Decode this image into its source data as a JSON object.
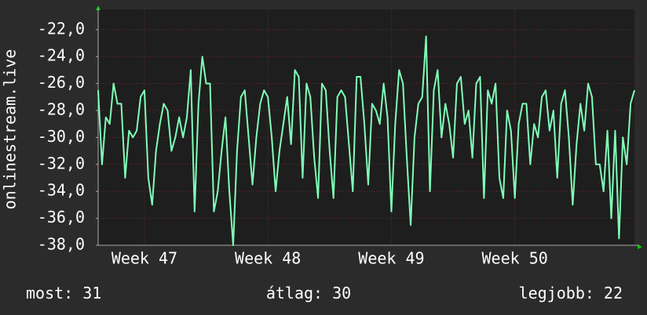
{
  "chart_data": {
    "type": "line",
    "y_label": "onlinestream.live",
    "xlim": [
      0,
      139
    ],
    "xticks": [
      {
        "value": 12,
        "label": "Week 47"
      },
      {
        "value": 44,
        "label": "Week 48"
      },
      {
        "value": 76,
        "label": "Week 49"
      },
      {
        "value": 108,
        "label": "Week 50"
      }
    ],
    "ylim": [
      -38,
      -20.5
    ],
    "yticks": [
      {
        "value": -38,
        "label": "-38,0"
      },
      {
        "value": -36,
        "label": "-36,0"
      },
      {
        "value": -34,
        "label": "-34,0"
      },
      {
        "value": -32,
        "label": "-32,0"
      },
      {
        "value": -30,
        "label": "-30,0"
      },
      {
        "value": -28,
        "label": "-28,0"
      },
      {
        "value": -26,
        "label": "-26,0"
      },
      {
        "value": -24,
        "label": "-24,0"
      },
      {
        "value": -22,
        "label": "-22,0"
      }
    ],
    "grid": true,
    "series": [
      {
        "color": "#80ffb8",
        "values": [
          -26.5,
          -32,
          -28.5,
          -29,
          -26,
          -27.5,
          -27.5,
          -33,
          -29.5,
          -30,
          -29.5,
          -27,
          -26.5,
          -33,
          -35,
          -31,
          -29,
          -27.5,
          -28,
          -31,
          -30,
          -28.5,
          -30,
          -28.5,
          -25,
          -35.5,
          -27.5,
          -24,
          -26,
          -26,
          -35.5,
          -34,
          -31,
          -28.5,
          -34,
          -38,
          -31,
          -27,
          -26.5,
          -30,
          -33.5,
          -30,
          -27.5,
          -26.5,
          -27,
          -30,
          -34,
          -31,
          -29,
          -27,
          -30.5,
          -25,
          -25.5,
          -33,
          -26,
          -27,
          -31.5,
          -34.5,
          -26,
          -26.5,
          -31,
          -34.5,
          -27,
          -26.5,
          -27,
          -30.5,
          -34,
          -25.5,
          -25.5,
          -29,
          -33.5,
          -27.5,
          -28,
          -29,
          -26,
          -28.5,
          -35.5,
          -29,
          -25,
          -26,
          -31.5,
          -36.5,
          -30,
          -27.5,
          -27,
          -22.5,
          -34,
          -26.5,
          -25,
          -30,
          -27.5,
          -29,
          -31.5,
          -26,
          -25.5,
          -29,
          -28,
          -31.5,
          -26,
          -25.5,
          -34.5,
          -26.5,
          -27.5,
          -26,
          -33,
          -34.5,
          -28,
          -29.5,
          -34.5,
          -29,
          -27.5,
          -27.5,
          -32,
          -29,
          -30,
          -27,
          -26.5,
          -29.5,
          -28,
          -33,
          -27.5,
          -26.5,
          -30,
          -35,
          -30.5,
          -27.5,
          -29.5,
          -26,
          -27,
          -32,
          -32,
          -34,
          -29.5,
          -36,
          -29.5,
          -37.5,
          -30,
          -32,
          -27.5,
          -26.5
        ]
      }
    ],
    "stats": [
      {
        "label": "most:",
        "value": 31
      },
      {
        "label": "átlag:",
        "value": 30
      },
      {
        "label": "legjobb:",
        "value": 22
      }
    ]
  }
}
